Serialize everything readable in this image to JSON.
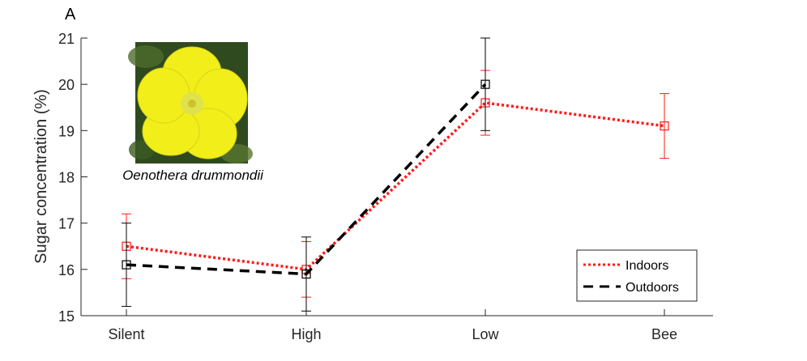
{
  "panel_label": "A",
  "flower_caption": "Oenothera drummondii",
  "colors": {
    "indoors": "#ff1a1a",
    "outdoors": "#000000",
    "axis": "#262626",
    "flower_petal": "#f2ee1a",
    "flower_bg": "#2f4a1e"
  },
  "chart_data": {
    "type": "line",
    "categories": [
      "Silent",
      "High",
      "Low",
      "Bee"
    ],
    "ylabel": "Sugar concentration (%)",
    "xlabel": "",
    "ylim": [
      15,
      21
    ],
    "yticks": [
      15,
      16,
      17,
      18,
      19,
      20,
      21
    ],
    "grid": false,
    "legend_position": "bottom-right",
    "series": [
      {
        "name": "Indoors",
        "color": "#ff1a1a",
        "line_style": "dotted",
        "marker": "square",
        "values": [
          16.5,
          16.0,
          19.6,
          19.1
        ],
        "error": [
          0.7,
          0.6,
          0.7,
          0.7
        ]
      },
      {
        "name": "Outdoors",
        "color": "#000000",
        "line_style": "dashed",
        "marker": "square",
        "values": [
          16.1,
          15.9,
          20.0,
          null
        ],
        "error": [
          0.9,
          0.8,
          1.0,
          null
        ]
      }
    ]
  }
}
